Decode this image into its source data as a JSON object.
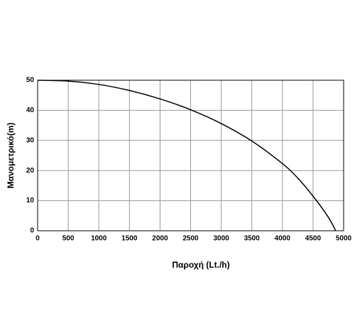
{
  "chart_data": {
    "type": "line",
    "xlabel": "Παροχή (Lt./h)",
    "ylabel": "Μανομετρικό(m)",
    "x": [
      0,
      500,
      1000,
      1500,
      2000,
      2500,
      3000,
      3500,
      4000,
      4250,
      4500,
      4750,
      4870
    ],
    "series": [
      {
        "color": "#000000",
        "values": [
          50,
          49.7,
          48.6,
          46.6,
          43.8,
          40.2,
          35.6,
          29.8,
          22.3,
          17.5,
          11.5,
          4.5,
          0
        ]
      }
    ],
    "xlim": [
      0,
      5000
    ],
    "xticks": [
      0,
      500,
      1000,
      1500,
      2000,
      2500,
      3000,
      3500,
      4000,
      4500,
      5000
    ],
    "ylim": [
      0,
      50
    ],
    "yticks": [
      0,
      10,
      20,
      30,
      40,
      50
    ],
    "grid": true
  }
}
